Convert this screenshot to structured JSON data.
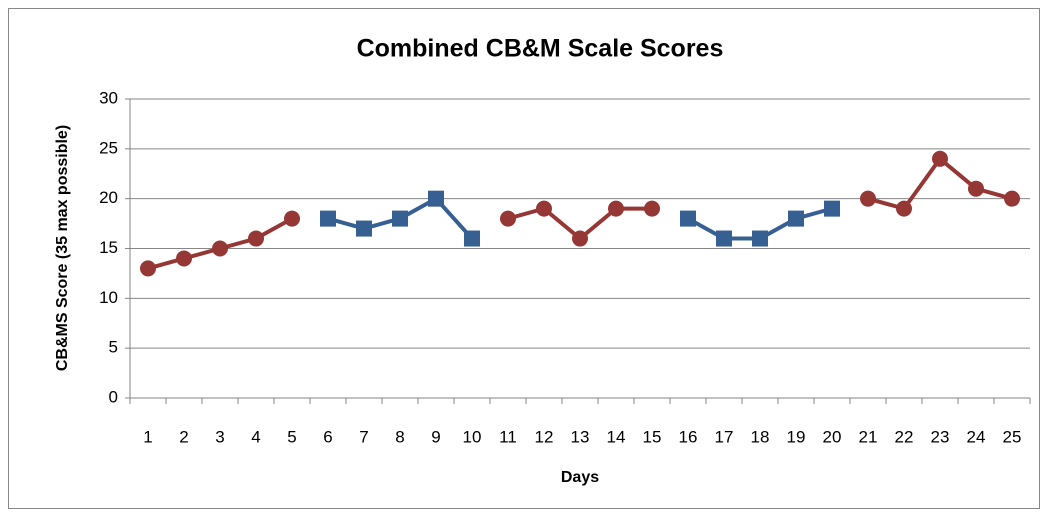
{
  "chart_data": {
    "type": "line",
    "title": "Combined CB&M Scale Scores",
    "x_label": "Days",
    "y_label": "CB&MS  Score (35 max possible)",
    "categories": [
      "1",
      "2",
      "3",
      "4",
      "5",
      "6",
      "7",
      "8",
      "9",
      "10",
      "11",
      "12",
      "13",
      "14",
      "15",
      "16",
      "17",
      "18",
      "19",
      "20",
      "21",
      "22",
      "23",
      "24",
      "25"
    ],
    "series": [
      {
        "color": "#953735",
        "marker": "circle",
        "values": [
          13,
          14,
          15,
          16,
          18,
          null,
          null,
          null,
          null,
          null,
          18,
          19,
          16,
          19,
          19,
          null,
          null,
          null,
          null,
          null,
          20,
          19,
          24,
          21,
          20
        ]
      },
      {
        "color": "#376092",
        "marker": "square",
        "values": [
          null,
          null,
          null,
          null,
          null,
          18,
          17,
          18,
          20,
          16,
          null,
          null,
          null,
          null,
          null,
          18,
          16,
          16,
          18,
          19,
          null,
          null,
          null,
          null,
          null
        ]
      }
    ],
    "ylim": [
      0,
      30
    ],
    "yticks": [
      0,
      5,
      10,
      15,
      20,
      25,
      30
    ],
    "grid": true
  }
}
